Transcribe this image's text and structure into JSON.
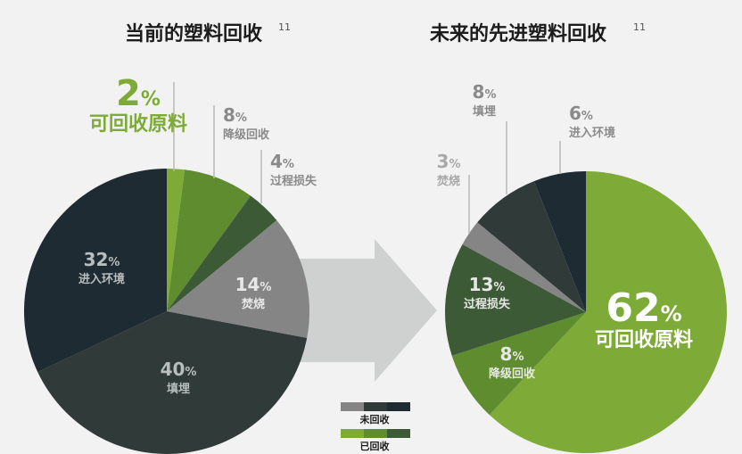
{
  "chart_data": [
    {
      "type": "pie",
      "title": "当前的塑料回收",
      "title_sup": "11",
      "slices": [
        {
          "label": "可回收原料",
          "value": 2,
          "group": "已回收",
          "color": "#7eaa37"
        },
        {
          "label": "降级回收",
          "value": 8,
          "group": "已回收",
          "color": "#5f8c2f"
        },
        {
          "label": "过程损失",
          "value": 4,
          "group": "已回收",
          "color": "#3d5a36"
        },
        {
          "label": "焚烧",
          "value": 14,
          "group": "未回收",
          "color": "#858585"
        },
        {
          "label": "填埋",
          "value": 40,
          "group": "未回收",
          "color": "#2f3a39"
        },
        {
          "label": "进入环境",
          "value": 32,
          "group": "未回收",
          "color": "#1e2b32"
        }
      ]
    },
    {
      "type": "pie",
      "title": "未来的先进塑料回收",
      "title_sup": "11",
      "slices": [
        {
          "label": "可回收原料",
          "value": 62,
          "group": "已回收",
          "color": "#7eaa37"
        },
        {
          "label": "降级回收",
          "value": 8,
          "group": "已回收",
          "color": "#5f8c2f"
        },
        {
          "label": "过程损失",
          "value": 13,
          "group": "已回收",
          "color": "#3d5a36"
        },
        {
          "label": "焚烧",
          "value": 3,
          "group": "未回收",
          "color": "#858585"
        },
        {
          "label": "填埋",
          "value": 8,
          "group": "未回收",
          "color": "#2f3a39"
        },
        {
          "label": "进入环境",
          "value": 6,
          "group": "未回收",
          "color": "#1e2b32"
        }
      ]
    }
  ],
  "legend": [
    {
      "label": "未回收",
      "colors": [
        "#858585",
        "#2f3a39",
        "#1e2b32"
      ]
    },
    {
      "label": "已回收",
      "colors": [
        "#7eaa37",
        "#5f8c2f",
        "#3d5a36"
      ]
    }
  ],
  "pct_symbol": "%",
  "colors": {
    "arrow": "#cfd1d1",
    "background": "#f2f2f2",
    "leader": "#b9b9b9"
  }
}
